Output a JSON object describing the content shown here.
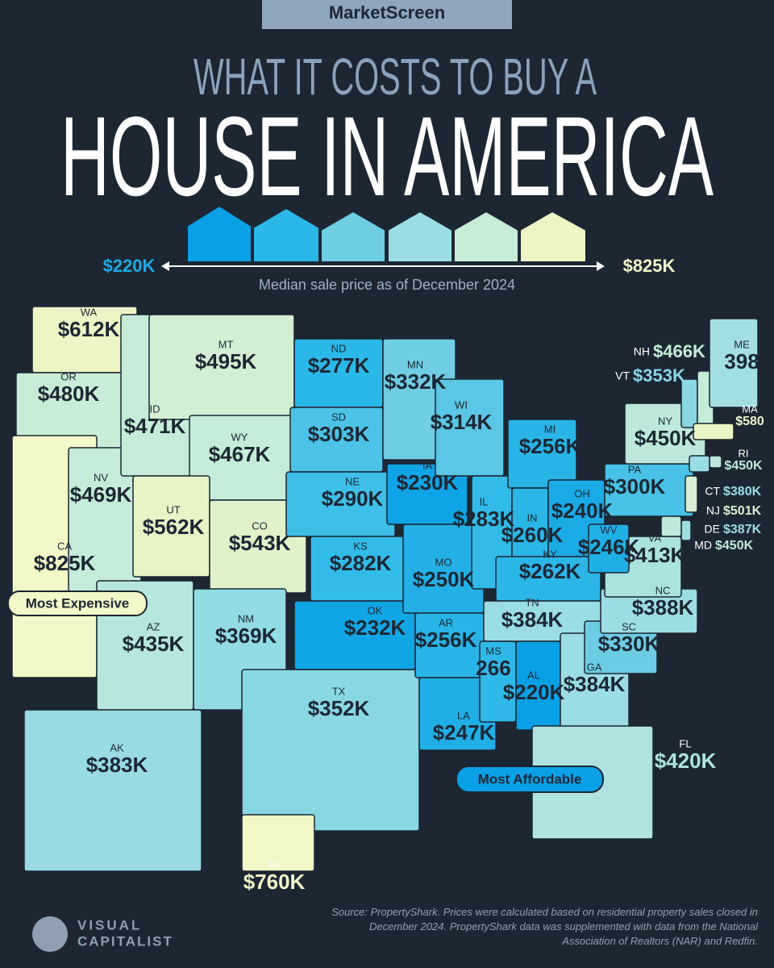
{
  "header": {
    "brand": "MarketScreen",
    "title_line1": "WHAT IT COSTS TO BUY A",
    "title_line2": "HOUSE IN AMERICA",
    "scale_low": "$220K",
    "scale_high": "$825K",
    "subtitle": "Median sale price as of December 2024"
  },
  "callouts": {
    "most_expensive": "Most Expensive",
    "most_affordable": "Most Affordable"
  },
  "states": [
    {
      "abbr": "WA",
      "price": "$612K",
      "color": "#eef5c4"
    },
    {
      "abbr": "OR",
      "price": "$480K",
      "color": "#c9ecd6"
    },
    {
      "abbr": "CA",
      "price": "$825K",
      "color": "#f3f8c8"
    },
    {
      "abbr": "NV",
      "price": "$469K",
      "color": "#c5ebd9"
    },
    {
      "abbr": "ID",
      "price": "$471K",
      "color": "#c6ebd8"
    },
    {
      "abbr": "MT",
      "price": "$495K",
      "color": "#d2efd2"
    },
    {
      "abbr": "WY",
      "price": "$467K",
      "color": "#c5ebd9"
    },
    {
      "abbr": "UT",
      "price": "$562K",
      "color": "#e6f4c6"
    },
    {
      "abbr": "CO",
      "price": "$543K",
      "color": "#dff2c9"
    },
    {
      "abbr": "AZ",
      "price": "$435K",
      "color": "#b6e6dd"
    },
    {
      "abbr": "NM",
      "price": "$369K",
      "color": "#93dbe3"
    },
    {
      "abbr": "ND",
      "price": "$277K",
      "color": "#2ab8e8"
    },
    {
      "abbr": "SD",
      "price": "$303K",
      "color": "#4cc3e6"
    },
    {
      "abbr": "NE",
      "price": "$290K",
      "color": "#3ebfe8"
    },
    {
      "abbr": "KS",
      "price": "$282K",
      "color": "#32bbe8"
    },
    {
      "abbr": "TX",
      "price": "$352K",
      "color": "#88d7e3"
    },
    {
      "abbr": "OK",
      "price": "$232K",
      "color": "#10a6e6"
    },
    {
      "abbr": "MN",
      "price": "$332K",
      "color": "#6fcde4"
    },
    {
      "abbr": "IA",
      "price": "$230K",
      "color": "#0fa4e6"
    },
    {
      "abbr": "MO",
      "price": "$250K",
      "color": "#24b0e7"
    },
    {
      "abbr": "AR",
      "price": "$256K",
      "color": "#28b4e7"
    },
    {
      "abbr": "LA",
      "price": "$247K",
      "color": "#20aee7"
    },
    {
      "abbr": "WI",
      "price": "$314K",
      "color": "#5bc6e5"
    },
    {
      "abbr": "IL",
      "price": "$283K",
      "color": "#32bbe8"
    },
    {
      "abbr": "MI",
      "price": "$256K",
      "color": "#28b4e7"
    },
    {
      "abbr": "IN",
      "price": "$260K",
      "color": "#2ab6e7"
    },
    {
      "abbr": "OH",
      "price": "$240K",
      "color": "#1aaae6"
    },
    {
      "abbr": "KY",
      "price": "$262K",
      "color": "#2cb6e7"
    },
    {
      "abbr": "TN",
      "price": "$384K",
      "color": "#9adde2"
    },
    {
      "abbr": "MS",
      "price": "266",
      "color": "#30b8e8"
    },
    {
      "abbr": "AL",
      "price": "$220K",
      "color": "#0aa0e6"
    },
    {
      "abbr": "GA",
      "price": "$384K",
      "color": "#9adde2"
    },
    {
      "abbr": "FL",
      "price": "$420K",
      "color": "#aee3df"
    },
    {
      "abbr": "SC",
      "price": "$330K",
      "color": "#6ccce4"
    },
    {
      "abbr": "NC",
      "price": "$388K",
      "color": "#9cdde2"
    },
    {
      "abbr": "VA",
      "price": "$413K",
      "color": "#aae2e0"
    },
    {
      "abbr": "WV",
      "price": "$246K",
      "color": "#1fafe7"
    },
    {
      "abbr": "PA",
      "price": "$300K",
      "color": "#48c2e6"
    },
    {
      "abbr": "NY",
      "price": "$450K",
      "color": "#bde8db"
    },
    {
      "abbr": "VT",
      "price": "$353K",
      "color": "#88d7e3"
    },
    {
      "abbr": "NH",
      "price": "$466K",
      "color": "#c5ebd9"
    },
    {
      "abbr": "ME",
      "price": "398",
      "color": "#a2dfe1"
    },
    {
      "abbr": "MA",
      "price": "$580",
      "color": "#eaf5c6"
    },
    {
      "abbr": "RI",
      "price": "$450K",
      "color": "#bde8db"
    },
    {
      "abbr": "CT",
      "price": "$380K",
      "color": "#9adde2"
    },
    {
      "abbr": "NJ",
      "price": "$501K",
      "color": "#d4efd1"
    },
    {
      "abbr": "DE",
      "price": "$387K",
      "color": "#9cdde2"
    },
    {
      "abbr": "MD",
      "price": "$450K",
      "color": "#bde8db"
    },
    {
      "abbr": "AK",
      "price": "$383K",
      "color": "#98dce2"
    },
    {
      "abbr": "HI",
      "price": "$760K",
      "color": "#f1f7c7"
    }
  ],
  "footer": {
    "source": "Source: PropertyShark. Prices were calculated based on residential property sales closed in December 2024. PropertyShark data was supplemented with data from the National Association of Realtors (NAR) and Redfin.",
    "logo_line1": "VISUAL",
    "logo_line2": "CAPITALIST"
  }
}
